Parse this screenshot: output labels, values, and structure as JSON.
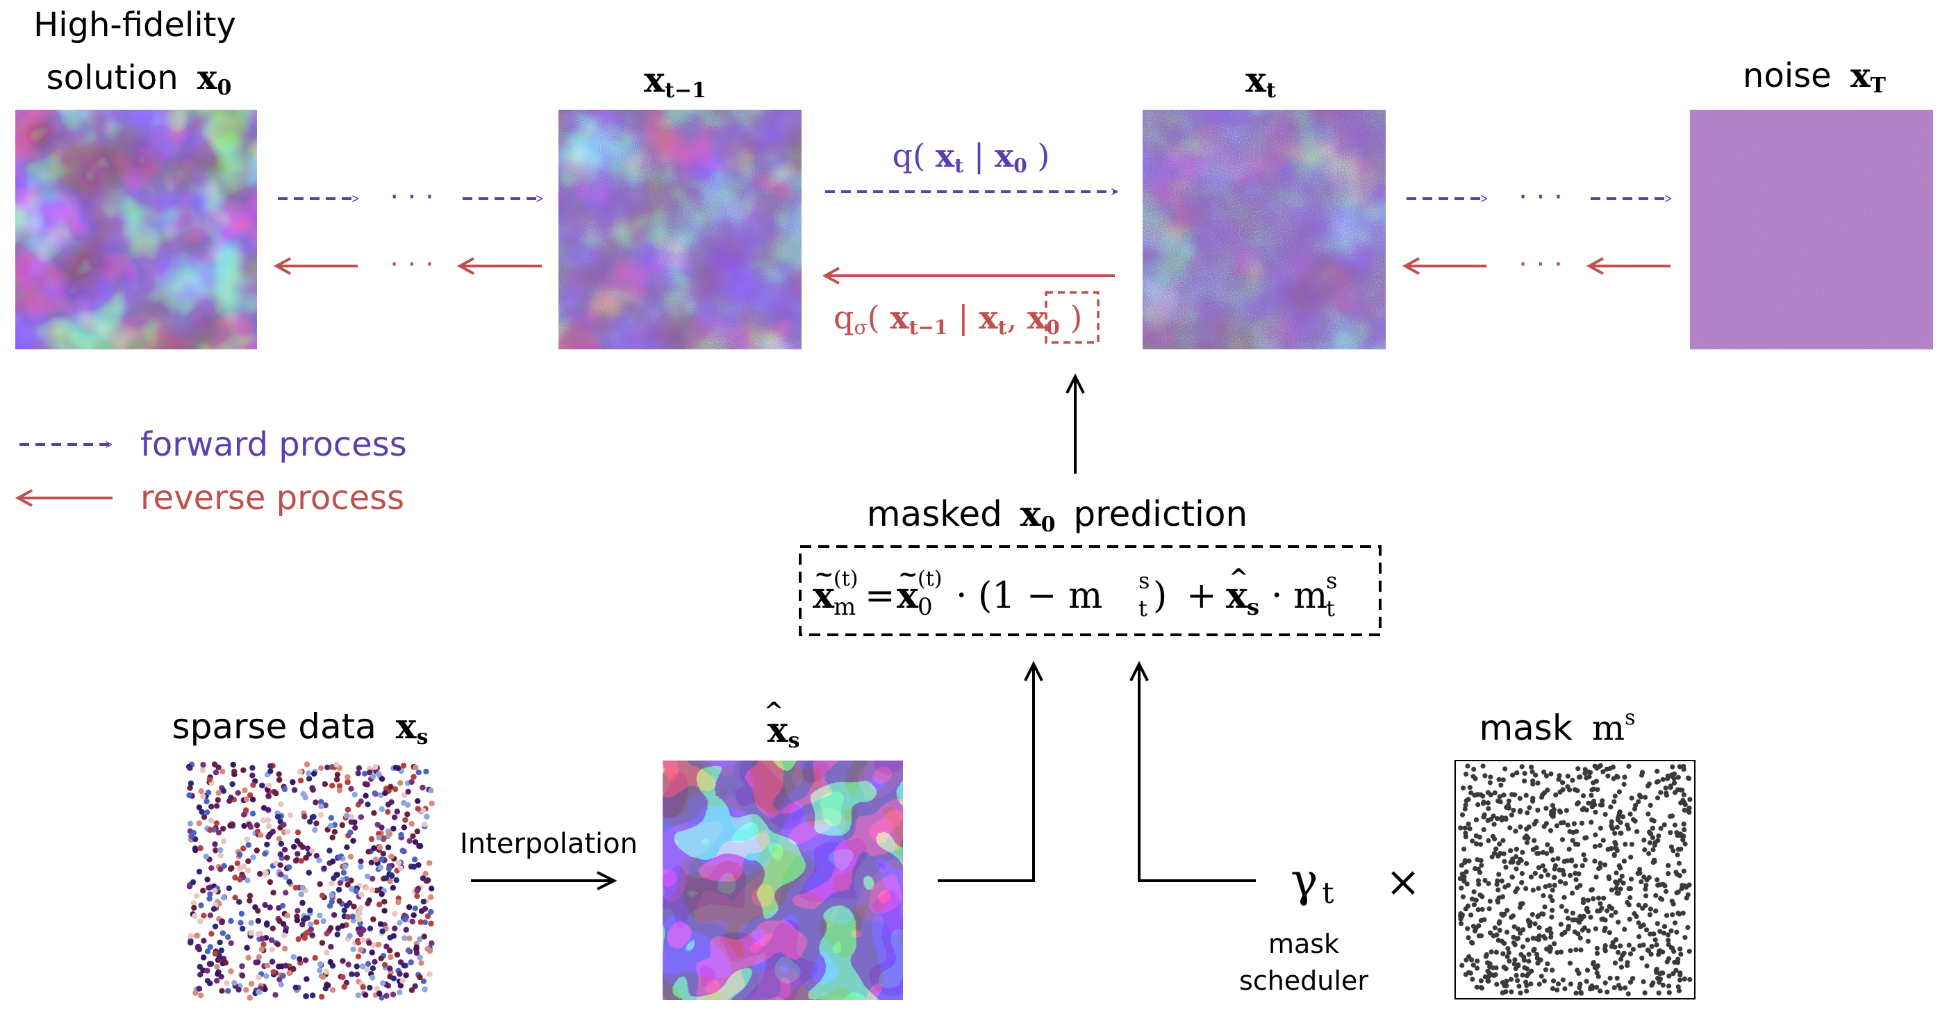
{
  "title_x0_line1": "High-fidelity",
  "title_x0_line2": "solution",
  "sym_x": "x",
  "sub_0": "0",
  "sub_t": "t",
  "sub_tm1": "t−1",
  "sub_T": "T",
  "sub_s": "s",
  "label_noise": "noise",
  "q_func": "q",
  "q_sigma_sub": "σ",
  "paren_open": "(",
  "paren_close": ")",
  "bar": "|",
  "comma": ",",
  "ellipsis": "· · ·",
  "legend_forward": "forward process",
  "legend_reverse": "reverse process",
  "masked_label": "masked",
  "prediction_label": "prediction",
  "eq_xm_sub": "m",
  "eq_sup_t": "(t)",
  "eq_equals": "=",
  "eq_dot": "·",
  "eq_one_minus": "(1 − m",
  "eq_plus": "+",
  "eq_m": "m",
  "eq_sup_s": "s",
  "sparse_label": "sparse data",
  "interp_label": "Interpolation",
  "mask_label": "mask",
  "gamma": "γ",
  "times": "×",
  "scheduler_line1": "mask",
  "scheduler_line2": "scheduler",
  "colors": {
    "forward": "#5b3fb0",
    "reverse": "#c0504d",
    "ink": "#000000"
  }
}
